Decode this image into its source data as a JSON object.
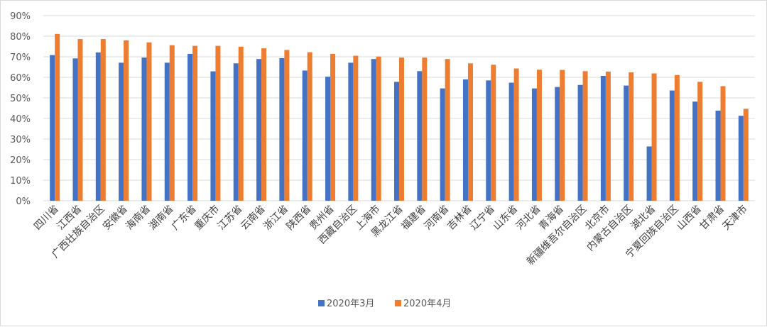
{
  "chart_data": {
    "type": "bar",
    "title": "",
    "xlabel": "",
    "ylabel": "",
    "ylim": [
      0,
      90
    ],
    "yticks": [
      0,
      10,
      20,
      30,
      40,
      50,
      60,
      70,
      80,
      90
    ],
    "ytick_labels": [
      "0%",
      "10%",
      "20%",
      "30%",
      "40%",
      "50%",
      "60%",
      "70%",
      "80%",
      "90%"
    ],
    "grid": true,
    "legend_position": "bottom",
    "categories": [
      "四川省",
      "江西省",
      "广西壮族自治区",
      "安徽省",
      "海南省",
      "湖南省",
      "广东省",
      "重庆市",
      "江苏省",
      "云南省",
      "浙江省",
      "陕西省",
      "贵州省",
      "西藏自治区",
      "上海市",
      "黑龙江省",
      "福建省",
      "河南省",
      "吉林省",
      "辽宁省",
      "山东省",
      "河北省",
      "青海省",
      "新疆维吾尔自治区",
      "北京市",
      "内蒙古自治区",
      "湖北省",
      "宁夏回族自治区",
      "山西省",
      "甘肃省",
      "天津市"
    ],
    "series": [
      {
        "name": "2020年3月",
        "color": "#4472c4",
        "values": [
          70.8,
          69.2,
          72.1,
          67.1,
          69.6,
          67.1,
          71.4,
          62.9,
          66.8,
          68.9,
          69.3,
          63.3,
          60.3,
          67.1,
          68.9,
          57.8,
          63.0,
          54.6,
          59.0,
          58.5,
          57.4,
          54.6,
          55.3,
          56.3,
          60.7,
          56.0,
          26.4,
          53.6,
          48.2,
          43.8,
          41.3
        ]
      },
      {
        "name": "2020年4月",
        "color": "#ed7d31",
        "values": [
          81.1,
          78.6,
          78.6,
          78.0,
          77.0,
          75.6,
          75.3,
          75.3,
          74.9,
          74.1,
          73.3,
          72.2,
          71.4,
          70.5,
          70.1,
          69.6,
          69.6,
          68.9,
          66.8,
          66.1,
          64.3,
          63.7,
          63.6,
          63.0,
          62.8,
          62.4,
          61.9,
          61.1,
          57.8,
          55.7,
          44.7
        ]
      }
    ]
  }
}
